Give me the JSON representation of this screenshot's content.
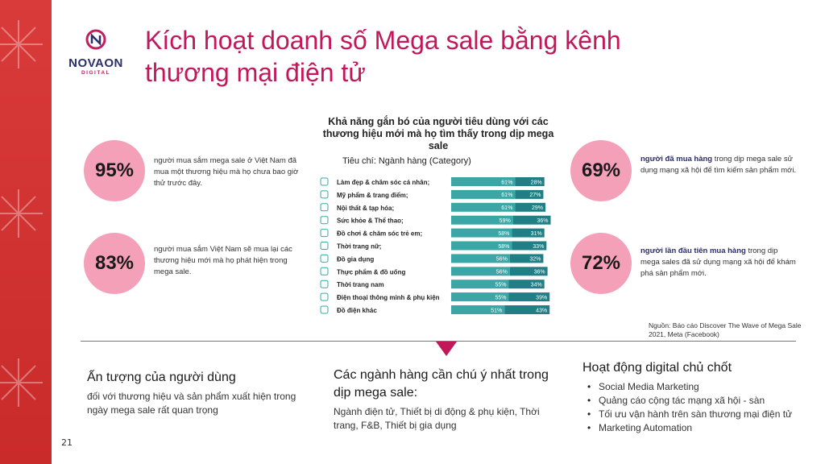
{
  "brand": {
    "name": "NOVAON",
    "sub": "DIGITAL"
  },
  "page_number": "21",
  "title": "Kích hoạt doanh số Mega sale bằng kênh thương mại điện tử",
  "colors": {
    "accent": "#c2185b",
    "circle": "#f3a0b8",
    "bar_light": "#3aa6a6",
    "bar_dark": "#1f7f85",
    "strip": "#d93a3a"
  },
  "stats": [
    {
      "value": "95%",
      "text": "người mua sắm mega sale ở Việt Nam đã mua một thương hiệu mà họ chưa bao giờ thử trước đây."
    },
    {
      "value": "83%",
      "text": " người mua sắm Việt Nam sẽ mua lại các thương hiệu mới mà họ phát hiện trong mega sale."
    },
    {
      "value": "69%",
      "highlight": "người đã mua hàng",
      "text": " trong dịp mega sale sử dụng mạng xã hội để tìm kiếm sản phẩm mới."
    },
    {
      "value": "72%",
      "highlight": "người lần đầu tiên mua hàng",
      "text": " trong dịp mega sales đã sử dụng mạng xã hội để khám phá sản phẩm mới."
    }
  ],
  "chart_data": {
    "type": "bar",
    "title": "Khả năng gắn bó của người tiêu dùng với các thương hiệu mới mà họ tìm thấy trong dịp mega sale",
    "subtitle": "Tiêu chí: Ngành hàng (Category)",
    "stacked": true,
    "orientation": "horizontal",
    "categories": [
      "Làm đẹp & chăm sóc cá nhân;",
      "Mỹ phẩm & trang điểm;",
      "Nội thất & tạp hóa;",
      "Sức khỏe & Thể thao;",
      "Đồ chơi & chăm sóc trẻ em;",
      "Thời trang nữ;",
      "Đồ gia dụng",
      "Thực phẩm & đồ uống",
      "Thời trang nam",
      "Điện thoại thông minh & phụ kiện",
      "Đồ điện khác"
    ],
    "series": [
      {
        "values": [
          61,
          61,
          61,
          59,
          58,
          58,
          56,
          56,
          55,
          55,
          51
        ],
        "color": "#3aa6a6"
      },
      {
        "values": [
          28,
          27,
          29,
          36,
          31,
          33,
          32,
          36,
          34,
          39,
          43
        ],
        "color": "#1f7f85"
      }
    ],
    "value_suffix": "%"
  },
  "source": "Nguồn: Báo cáo Discover The Wave of Mega Sale 2021, Meta (Facebook)",
  "bottom": {
    "col1": {
      "heading": "Ấn tượng của người dùng",
      "body": "đối với thương hiệu và sản phẩm xuất hiện trong ngày mega sale rất quan trọng"
    },
    "col2": {
      "heading": "Các ngành hàng cần chú ý nhất trong dịp mega sale:",
      "body": "Ngành điện tử, Thiết bị di động & phụ kiện, Thời trang, F&B, Thiết bị gia dụng"
    },
    "col3": {
      "heading": "Hoạt động digital chủ chốt",
      "items": [
        "Social Media Marketing",
        "Quảng cáo cộng tác mạng xã hội - sàn",
        "Tối ưu vận hành trên sàn thương mại điện tử",
        "Marketing Automation"
      ]
    }
  }
}
